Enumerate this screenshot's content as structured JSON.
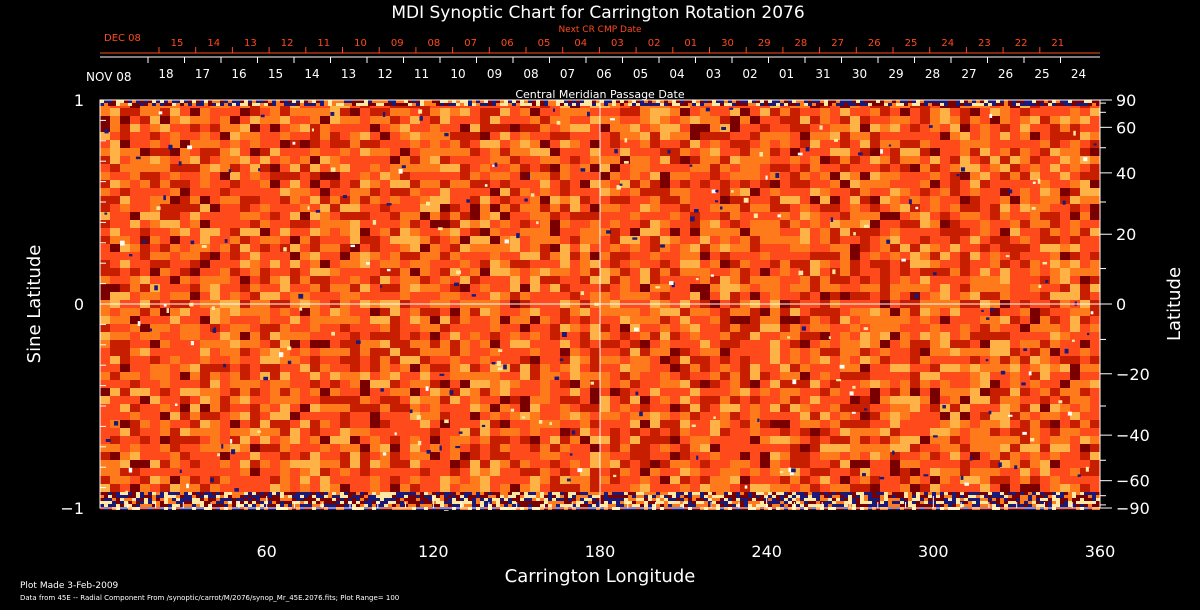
{
  "chart_data": {
    "type": "heatmap",
    "title": "MDI Synoptic Chart for Carrington Rotation 2076",
    "xlabel": "Carrington Longitude",
    "ylabel_left": "Sine Latitude",
    "ylabel_right": "Latitude",
    "x_range": [
      0,
      360
    ],
    "x_ticks": [
      "60",
      "120",
      "180",
      "240",
      "300",
      "360"
    ],
    "y_range_sine": [
      -1,
      1
    ],
    "y_ticks_left": [
      "1",
      "0",
      "−1"
    ],
    "y_ticks_right": [
      "90",
      "60",
      "40",
      "20",
      "0",
      "−20",
      "−40",
      "−60",
      "−90"
    ],
    "top_axis_label": "Central Meridian Passage Date",
    "top_axis_month_label": "NOV 08",
    "top_axis_dates": [
      "18",
      "17",
      "16",
      "15",
      "14",
      "13",
      "12",
      "11",
      "10",
      "09",
      "08",
      "07",
      "06",
      "05",
      "04",
      "03",
      "02",
      "01",
      "31",
      "30",
      "29",
      "28",
      "27",
      "26",
      "25",
      "24"
    ],
    "next_cr_label": "Next CR CMP Date",
    "next_cr_month_label": "DEC 08",
    "next_cr_dates": [
      "15",
      "14",
      "13",
      "12",
      "11",
      "10",
      "09",
      "08",
      "07",
      "06",
      "05",
      "04",
      "03",
      "02",
      "01",
      "30",
      "29",
      "28",
      "27",
      "26",
      "25",
      "24",
      "23",
      "22",
      "21"
    ],
    "grid": "crosshair at longitude 180 and sine latitude 0",
    "colormap": [
      "#7a0000",
      "#c81e00",
      "#ff4a1c",
      "#ff7a1a",
      "#ffb347",
      "#ffe9a0",
      "#ffffff",
      "#1a1a7a"
    ],
    "plot_range": "100"
  },
  "footer": {
    "plot_made": "Plot Made  3-Feb-2009",
    "data_from": "Data from 45E -- Radial Component From /synoptic/carrot/M/2076/synop_Mr_45E.2076.fits; Plot Range= 100"
  }
}
